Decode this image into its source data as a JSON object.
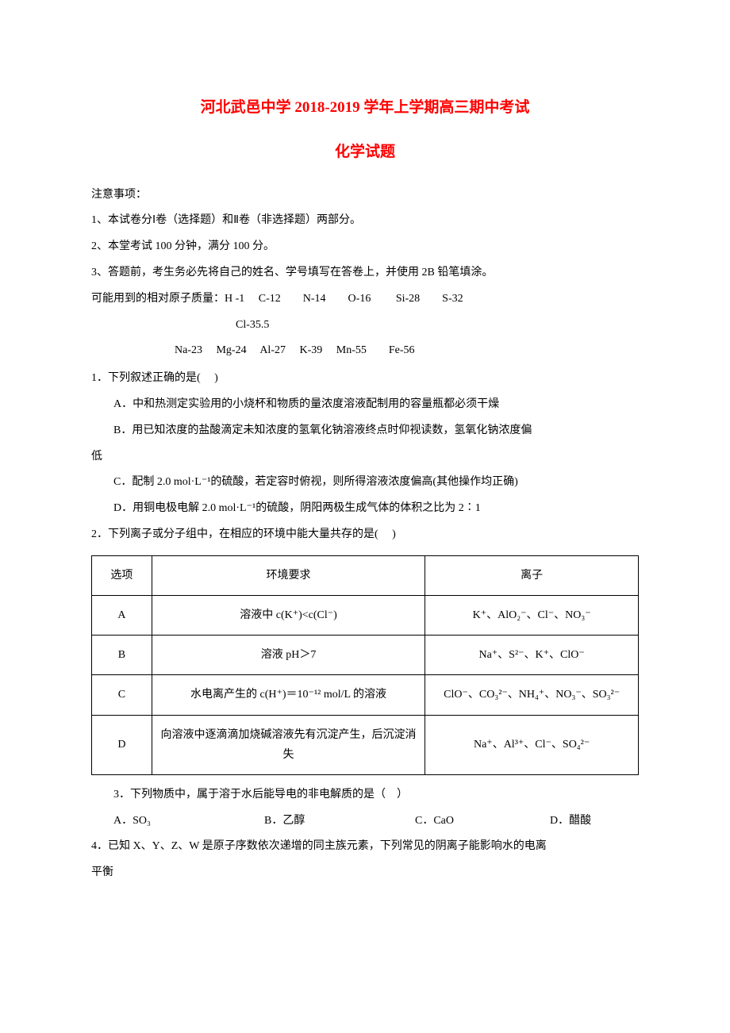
{
  "colors": {
    "title": "#ff0000",
    "text": "#000000",
    "background": "#ffffff",
    "border": "#000000"
  },
  "typography": {
    "title_fontsize": 19,
    "body_fontsize": 14,
    "font_family": "SimSun"
  },
  "title": {
    "line1": "河北武邑中学 2018-2019 学年上学期高三期中考试",
    "line2": "化学试题"
  },
  "notice": {
    "label": "注意事项：",
    "items": [
      "1、本试卷分Ⅰ卷（选择题）和Ⅱ卷（非选择题）两部分。",
      "2、本堂考试 100 分钟，满分 100 分。",
      "3、答题前，考生务必先将自己的姓名、学号填写在答卷上，并使用 2B 铅笔填涂。"
    ]
  },
  "atomic_mass": {
    "line1": "可能用到的相对原子质量：H -1  C-12  N-14  O-16   Si-28  S-32",
    "line2": "Cl-35.5",
    "line3": "Na-23  Mg-24  Al-27  K-39   Mn-55  Fe-56"
  },
  "q1": {
    "stem": "1．下列叙述正确的是(  )",
    "opt_a": "A．中和热测定实验用的小烧杯和物质的量浓度溶液配制用的容量瓶都必须干燥",
    "opt_b_line1": "B．用已知浓度的盐酸滴定未知浓度的氢氧化钠溶液终点时仰视读数，氢氧化钠浓度偏",
    "opt_b_line2": "低",
    "opt_c": "C．配制 2.0 mol·L⁻¹的硫酸，若定容时俯视，则所得溶液浓度偏高(其他操作均正确)",
    "opt_d": "D．用铜电极电解 2.0 mol·L⁻¹的硫酸，阴阳两极生成气体的体积之比为 2∶1"
  },
  "q2": {
    "stem": "2．下列离子或分子组中，在相应的环境中能大量共存的是(  )",
    "table": {
      "headers": [
        "选项",
        "环境要求",
        "离子"
      ],
      "col_widths_pct": [
        11,
        50,
        39
      ],
      "rows": [
        {
          "opt": "A",
          "env": "溶液中 c(K⁺)<c(Cl⁻)",
          "ions": "K⁺、AlO₂⁻、Cl⁻、NO₃⁻"
        },
        {
          "opt": "B",
          "env": "溶液 pH＞7",
          "ions": "Na⁺、S²⁻、K⁺、ClO⁻"
        },
        {
          "opt": "C",
          "env": "水电离产生的 c(H⁺)＝10⁻¹² mol/L 的溶液",
          "ions": "ClO⁻、CO₃²⁻、NH₄⁺、NO₃⁻、SO₃²⁻"
        },
        {
          "opt": "D",
          "env": "向溶液中逐滴滴加烧碱溶液先有沉淀产生，后沉淀消失",
          "ions": "Na⁺、Al³⁺、Cl⁻、SO₄²⁻"
        }
      ]
    }
  },
  "q3": {
    "stem": "3．下列物质中，属于溶于水后能导电的非电解质的是（ ）",
    "opt_a": "A．SO₃",
    "opt_b": "B．乙醇",
    "opt_c": "C．CaO",
    "opt_d": "D．醋酸"
  },
  "q4": {
    "line1": "4．已知 X、Y、Z、W 是原子序数依次递增的同主族元素，下列常见的阴离子能影响水的电离",
    "line2": "平衡"
  }
}
